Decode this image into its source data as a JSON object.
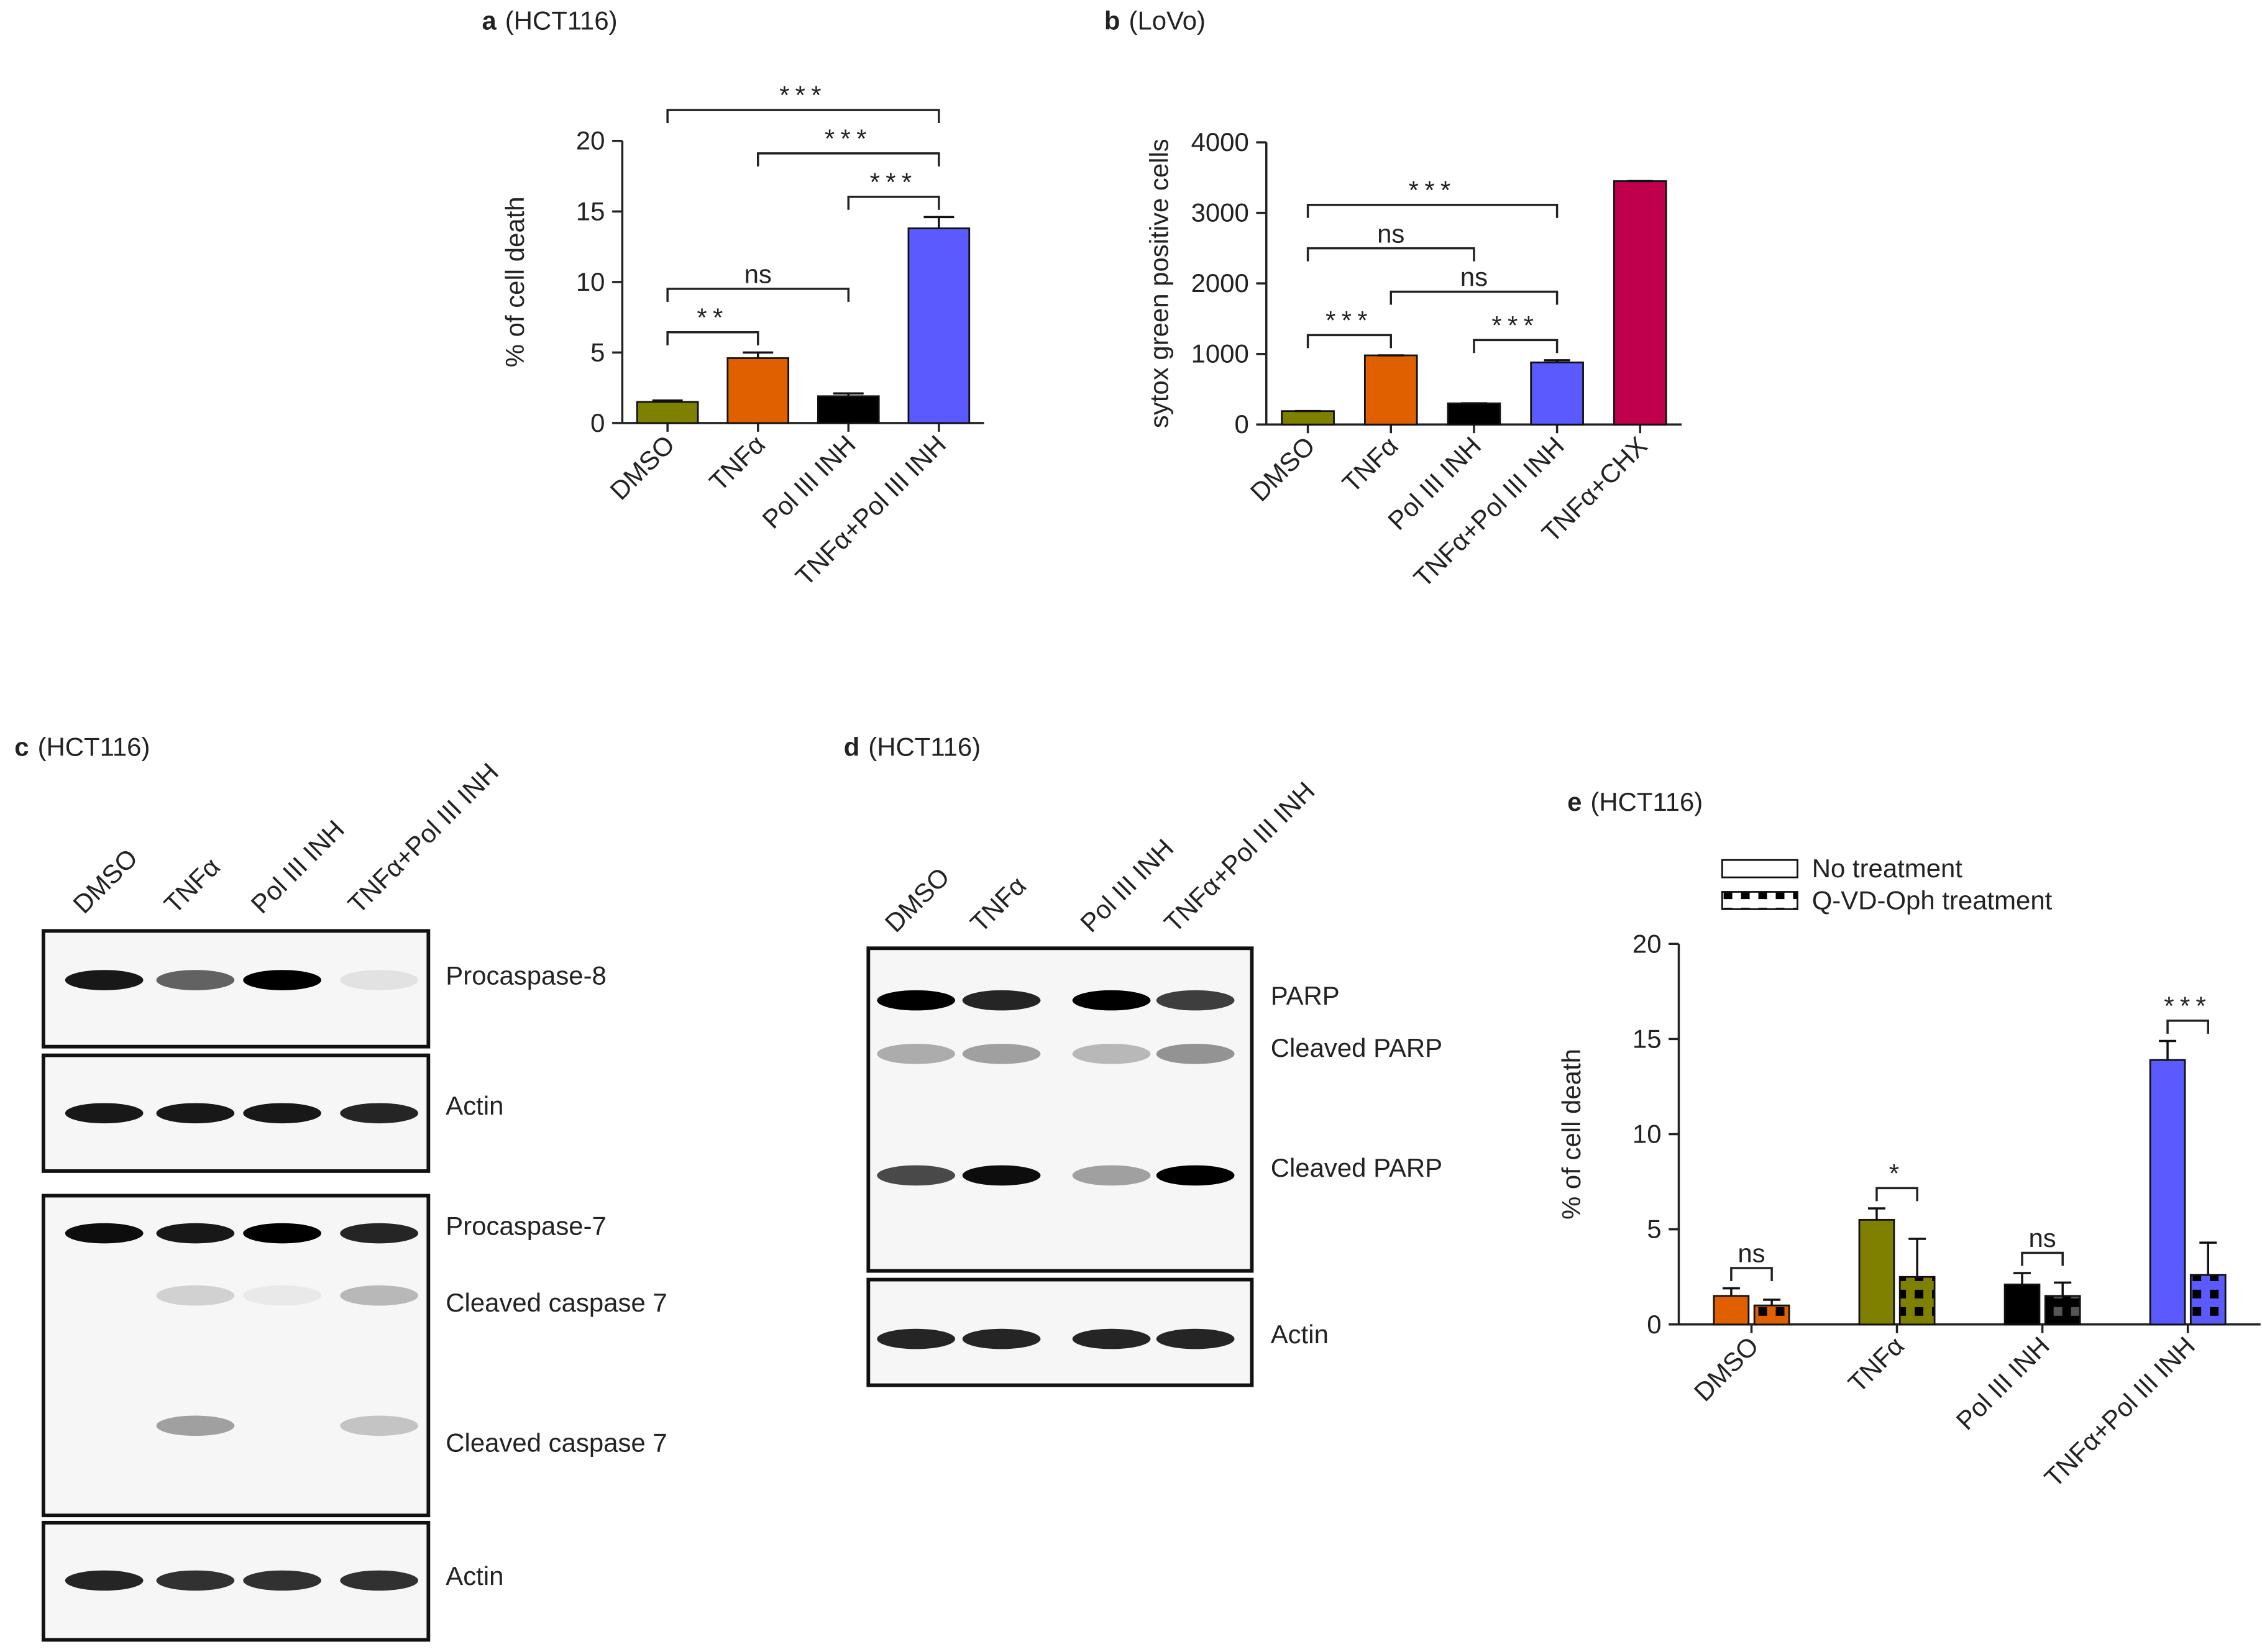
{
  "chart_data": [
    {
      "type": "bar",
      "panel": "a",
      "title": "(HCT116)",
      "ylabel": "% of cell death",
      "categories": [
        "DMSO",
        "TNFα",
        "Pol III INH",
        "TNFα+Pol III INH"
      ],
      "series": [
        {
          "values": [
            1.5,
            4.6,
            1.9,
            13.8
          ],
          "errors": [
            0.1,
            0.4,
            0.2,
            0.8
          ]
        }
      ],
      "colors": [
        "#7f7f00",
        "#e06000",
        "#000000",
        "#5a5aff"
      ],
      "ylim": [
        0,
        20
      ],
      "yticks": [
        0,
        5,
        10,
        15,
        20
      ],
      "brackets": [
        {
          "between": [
            "DMSO",
            "TNFα"
          ],
          "label": "**"
        },
        {
          "between": [
            "DMSO",
            "Pol III INH"
          ],
          "label": "ns"
        },
        {
          "between": [
            "Pol III INH",
            "TNFα+Pol III INH"
          ],
          "label": "***"
        },
        {
          "between": [
            "TNFα",
            "TNFα+Pol III INH"
          ],
          "label": "***"
        },
        {
          "between": [
            "DMSO",
            "TNFα+Pol III INH"
          ],
          "label": "***"
        }
      ]
    },
    {
      "type": "bar",
      "panel": "b",
      "title": "(LoVo)",
      "ylabel": "sytox green positive cells",
      "categories": [
        "DMSO",
        "TNFα",
        "Pol III INH",
        "TNFα+Pol III INH",
        "TNFα+CHX"
      ],
      "series": [
        {
          "values": [
            190,
            980,
            300,
            880,
            3450
          ],
          "errors": [
            0,
            0,
            0,
            30,
            0
          ]
        }
      ],
      "colors": [
        "#7f7f00",
        "#e06000",
        "#000000",
        "#5a5aff",
        "#c0004c"
      ],
      "ylim": [
        0,
        4000
      ],
      "yticks": [
        0,
        1000,
        2000,
        3000,
        4000
      ],
      "brackets": [
        {
          "between": [
            "DMSO",
            "TNFα"
          ],
          "label": "***"
        },
        {
          "between": [
            "Pol III INH",
            "TNFα+Pol III INH"
          ],
          "label": "***"
        },
        {
          "between": [
            "TNFα",
            "TNFα+Pol III INH"
          ],
          "label": "ns"
        },
        {
          "between": [
            "DMSO",
            "Pol III INH"
          ],
          "label": "ns"
        },
        {
          "between": [
            "DMSO",
            "TNFα+Pol III INH"
          ],
          "label": "***"
        }
      ]
    },
    {
      "type": "bar",
      "panel": "e",
      "title": "(HCT116)",
      "ylabel": "% of cell death",
      "categories": [
        "DMSO",
        "TNFα",
        "Pol III INH",
        "TNFα+Pol III INH"
      ],
      "series": [
        {
          "name": "No treatment",
          "color": "#ffffff",
          "values": [
            1.5,
            5.5,
            2.1,
            13.9
          ],
          "errors": [
            0.4,
            0.6,
            0.6,
            1.0
          ]
        },
        {
          "name": "Q-VD-Oph treatment",
          "color": "#ffffff",
          "hatch": true,
          "values": [
            1.0,
            2.5,
            1.5,
            2.6
          ],
          "errors": [
            0.3,
            2.0,
            0.7,
            1.7
          ]
        }
      ],
      "colors": [
        "#e06000",
        "#7f7f00",
        "#000000",
        "#5a5aff"
      ],
      "ylim": [
        0,
        20
      ],
      "yticks": [
        0,
        5,
        10,
        15,
        20
      ],
      "legend": "top-left",
      "brackets": [
        {
          "between": [
            "DMSO"
          ],
          "label": "ns"
        },
        {
          "between": [
            "TNFα"
          ],
          "label": "*"
        },
        {
          "between": [
            "Pol III INH"
          ],
          "label": "ns"
        },
        {
          "between": [
            "TNFα+Pol III INH"
          ],
          "label": "***"
        }
      ]
    }
  ],
  "blots": [
    {
      "panel": "c",
      "title": "(HCT116)",
      "lanes": [
        "DMSO",
        "TNFα",
        "Pol III INH",
        "TNFα+Pol III INH"
      ],
      "membranes": [
        {
          "labels": [
            "Procaspase-8"
          ]
        },
        {
          "labels": [
            "Actin"
          ]
        },
        {
          "labels": [
            "Procaspase-7",
            "Cleaved caspase 7",
            "Cleaved caspase 7"
          ]
        },
        {
          "labels": [
            "Actin"
          ]
        }
      ]
    },
    {
      "panel": "d",
      "title": "(HCT116)",
      "lanes": [
        "DMSO",
        "TNFα",
        "Pol III INH",
        "TNFα+Pol III INH"
      ],
      "membranes": [
        {
          "labels": [
            "PARP",
            "Cleaved PARP",
            "Cleaved PARP"
          ]
        },
        {
          "labels": [
            "Actin"
          ]
        }
      ]
    }
  ]
}
